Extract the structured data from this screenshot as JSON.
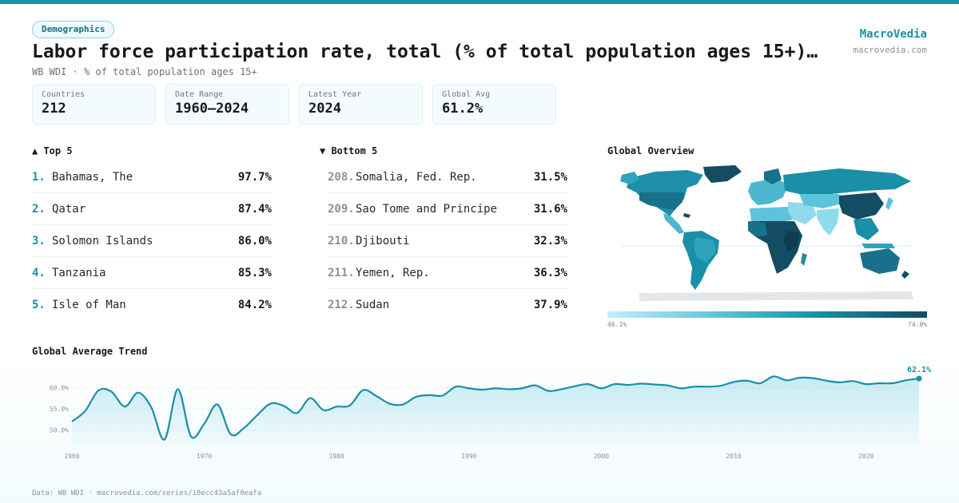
{
  "header": {
    "badge": "Demographics",
    "title": "Labor force participation rate, total (% of total population ages 15+) (…",
    "subtitle": "WB WDI · % of total population ages 15+",
    "brand": "MacroVedia",
    "brand_url": "macrovedia.com"
  },
  "stats": [
    {
      "label": "Countries",
      "value": "212"
    },
    {
      "label": "Date Range",
      "value": "1960–2024"
    },
    {
      "label": "Latest Year",
      "value": "2024"
    },
    {
      "label": "Global Avg",
      "value": "61.2%"
    }
  ],
  "top5": {
    "heading": "▲ Top 5",
    "items": [
      {
        "rank": "1.",
        "name": "Bahamas, The",
        "value": "97.7%"
      },
      {
        "rank": "2.",
        "name": "Qatar",
        "value": "87.4%"
      },
      {
        "rank": "3.",
        "name": "Solomon Islands",
        "value": "86.0%"
      },
      {
        "rank": "4.",
        "name": "Tanzania",
        "value": "85.3%"
      },
      {
        "rank": "5.",
        "name": "Isle of Man",
        "value": "84.2%"
      }
    ]
  },
  "bottom5": {
    "heading": "▼ Bottom 5",
    "items": [
      {
        "rank": "208.",
        "name": "Somalia, Fed. Rep.",
        "value": "31.5%"
      },
      {
        "rank": "209.",
        "name": "Sao Tome and Principe",
        "value": "31.6%"
      },
      {
        "rank": "210.",
        "name": "Djibouti",
        "value": "32.3%"
      },
      {
        "rank": "211.",
        "name": "Yemen, Rep.",
        "value": "36.3%"
      },
      {
        "rank": "212.",
        "name": "Sudan",
        "value": "37.9%"
      }
    ]
  },
  "map": {
    "heading": "Global Overview",
    "scale_min": "46.1%",
    "scale_max": "74.0%"
  },
  "trend": {
    "heading": "Global Average Trend"
  },
  "footer": "Data: WB WDI · macrovedia.com/series/18ecc43a5af0eafa",
  "colors": {
    "accent": "#1a8fa8",
    "dark": "#134c63",
    "light": "#c5eef6"
  },
  "chart_data": {
    "type": "area",
    "title": "Global Average Trend",
    "xlabel": "",
    "ylabel": "",
    "x": [
      1960,
      1961,
      1962,
      1963,
      1964,
      1965,
      1966,
      1967,
      1968,
      1969,
      1970,
      1971,
      1972,
      1973,
      1974,
      1975,
      1976,
      1977,
      1978,
      1979,
      1980,
      1981,
      1982,
      1983,
      1984,
      1985,
      1986,
      1987,
      1988,
      1989,
      1990,
      1991,
      1992,
      1993,
      1994,
      1995,
      1996,
      1997,
      1998,
      1999,
      2000,
      2001,
      2002,
      2003,
      2004,
      2005,
      2006,
      2007,
      2008,
      2009,
      2010,
      2011,
      2012,
      2013,
      2014,
      2015,
      2016,
      2017,
      2018,
      2019,
      2020,
      2021,
      2022,
      2023,
      2024
    ],
    "series": [
      {
        "values": [
          52.0,
          54.5,
          59.3,
          59.0,
          55.5,
          58.8,
          55.3,
          47.8,
          59.6,
          48.5,
          51.5,
          56.0,
          49.0,
          50.5,
          53.5,
          56.2,
          55.7,
          54.0,
          57.5,
          54.7,
          55.5,
          55.8,
          59.4,
          58.0,
          56.2,
          56.0,
          57.8,
          58.2,
          58.1,
          60.2,
          59.8,
          59.5,
          59.8,
          59.6,
          59.8,
          60.5,
          59.2,
          59.6,
          60.3,
          60.8,
          59.8,
          60.8,
          60.6,
          60.9,
          60.7,
          60.5,
          59.8,
          60.2,
          60.2,
          60.4,
          61.3,
          61.6,
          61.0,
          62.6,
          61.7,
          62.3,
          62.2,
          61.6,
          61.2,
          61.5,
          60.8,
          61.0,
          61.0,
          61.7,
          62.1
        ]
      }
    ],
    "y_ticks": [
      "60.0%",
      "55.0%",
      "50.0%"
    ],
    "x_ticks": [
      "1960",
      "1970",
      "1980",
      "1990",
      "2000",
      "2010",
      "2020"
    ],
    "end_label": "62.1%",
    "ylim": [
      46,
      64
    ],
    "grid": true,
    "legend": "none"
  }
}
